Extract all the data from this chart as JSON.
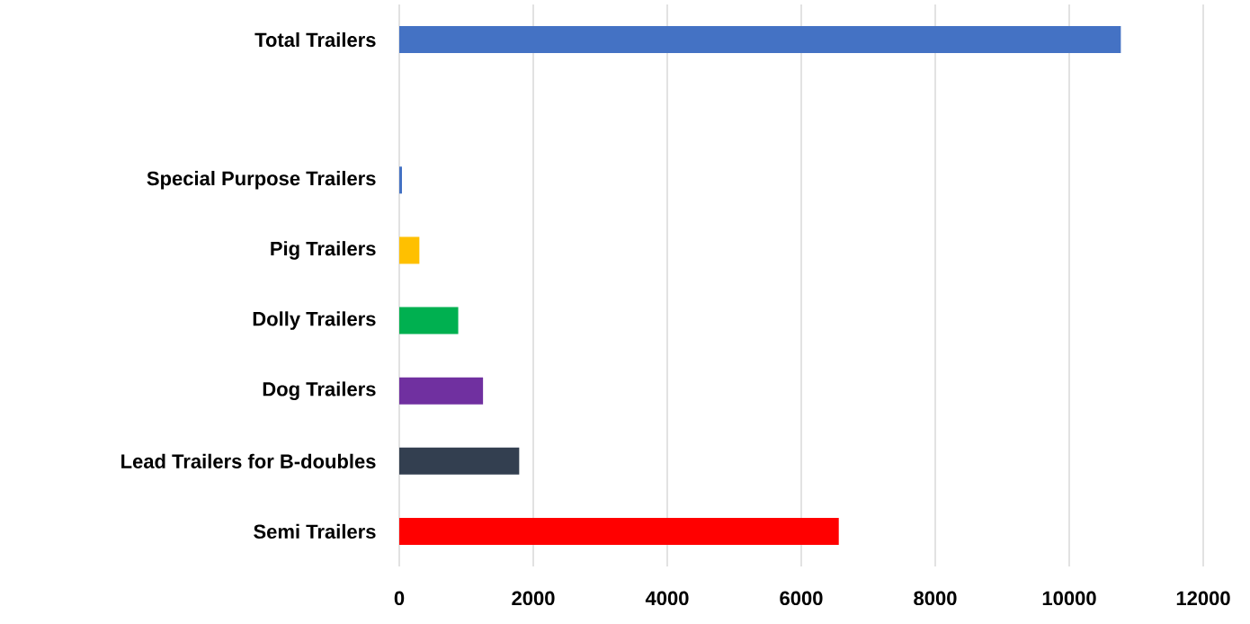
{
  "chart_data": {
    "type": "bar",
    "orientation": "horizontal",
    "categories": [
      "Total Trailers",
      null,
      "Special Purpose Trailers",
      "Pig Trailers",
      "Dolly Trailers",
      "Dog Trailers",
      "Lead Trailers for B-doubles",
      "Semi Trailers"
    ],
    "values": [
      10770,
      null,
      40,
      300,
      880,
      1250,
      1790,
      6560
    ],
    "colors": [
      "#4472c4",
      null,
      "#4472c4",
      "#ffc000",
      "#00b050",
      "#7030a0",
      "#333f50",
      "#ff0000"
    ],
    "xlim": [
      0,
      12000
    ],
    "xticks": [
      0,
      2000,
      4000,
      6000,
      8000,
      10000,
      12000
    ],
    "grid": "x"
  }
}
